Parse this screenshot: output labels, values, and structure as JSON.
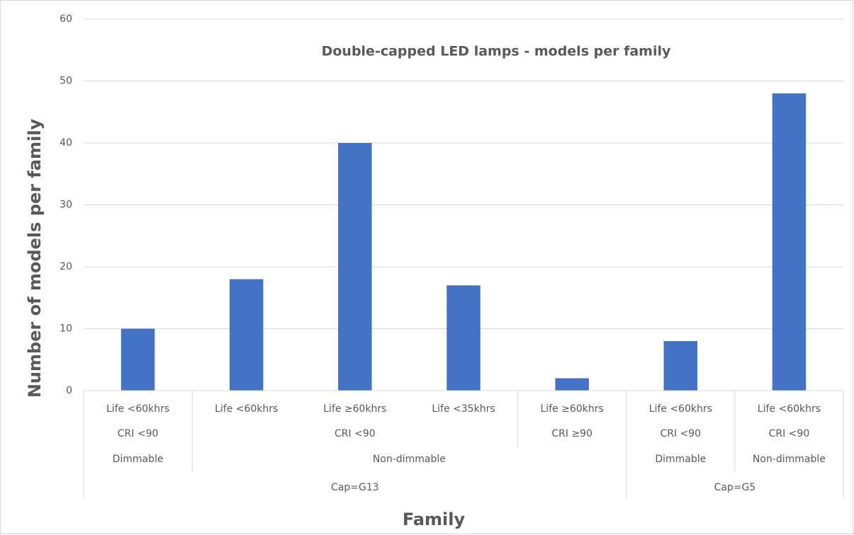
{
  "chart_data": {
    "type": "bar",
    "title": "Double-capped LED lamps - models per family",
    "x_label": "Family",
    "y_label": "Number of models per family",
    "categories": [
      "Life <60khrs",
      "Life <60khrs",
      "Life ≥60khrs",
      "Life <35khrs",
      "Life ≥60khrs",
      "Life <60khrs",
      "Life <60khrs"
    ],
    "category_groups": [
      [
        {
          "label": "CRI <90",
          "span": 1
        },
        {
          "label": "CRI <90",
          "span": 3
        },
        {
          "label": "CRI ≥90",
          "span": 1
        },
        {
          "label": "CRI <90",
          "span": 1
        },
        {
          "label": "CRI <90",
          "span": 1
        }
      ],
      [
        {
          "label": "Dimmable",
          "span": 1
        },
        {
          "label": "Non-dimmable",
          "span": 4
        },
        {
          "label": "Dimmable",
          "span": 1
        },
        {
          "label": "Non-dimmable",
          "span": 1
        }
      ],
      [
        {
          "label": "Cap=G13",
          "span": 5
        },
        {
          "label": "Cap=G5",
          "span": 2
        }
      ]
    ],
    "values": [
      10,
      18,
      40,
      17,
      2,
      8,
      48
    ],
    "color": "#4472c4",
    "ylim": [
      0,
      60
    ],
    "yticks": [
      0,
      10,
      20,
      30,
      40,
      50,
      60
    ],
    "grid": true
  }
}
